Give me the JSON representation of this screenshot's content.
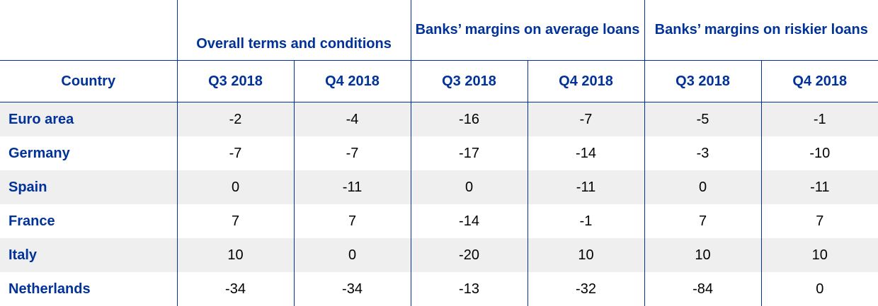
{
  "table": {
    "groups": [
      {
        "label": "Overall terms and conditions"
      },
      {
        "label": "Banks’ margins on average loans"
      },
      {
        "label": "Banks’ margins on riskier loans"
      }
    ],
    "country_header": "Country",
    "periods": [
      "Q3 2018",
      "Q4 2018",
      "Q3 2018",
      "Q4 2018",
      "Q3 2018",
      "Q4 2018"
    ],
    "rows": [
      {
        "country": "Euro area",
        "values": [
          "-2",
          "-4",
          "-16",
          "-7",
          "-5",
          "-1"
        ]
      },
      {
        "country": "Germany",
        "values": [
          "-7",
          "-7",
          "-17",
          "-14",
          "-3",
          "-10"
        ]
      },
      {
        "country": "Spain",
        "values": [
          "0",
          "-11",
          "0",
          "-11",
          "0",
          "-11"
        ]
      },
      {
        "country": "France",
        "values": [
          "7",
          "7",
          "-14",
          "-1",
          "7",
          "7"
        ]
      },
      {
        "country": "Italy",
        "values": [
          "10",
          "0",
          "-20",
          "10",
          "10",
          "10"
        ]
      },
      {
        "country": "Netherlands",
        "values": [
          "-34",
          "-34",
          "-13",
          "-32",
          "-84",
          "0"
        ]
      }
    ]
  }
}
